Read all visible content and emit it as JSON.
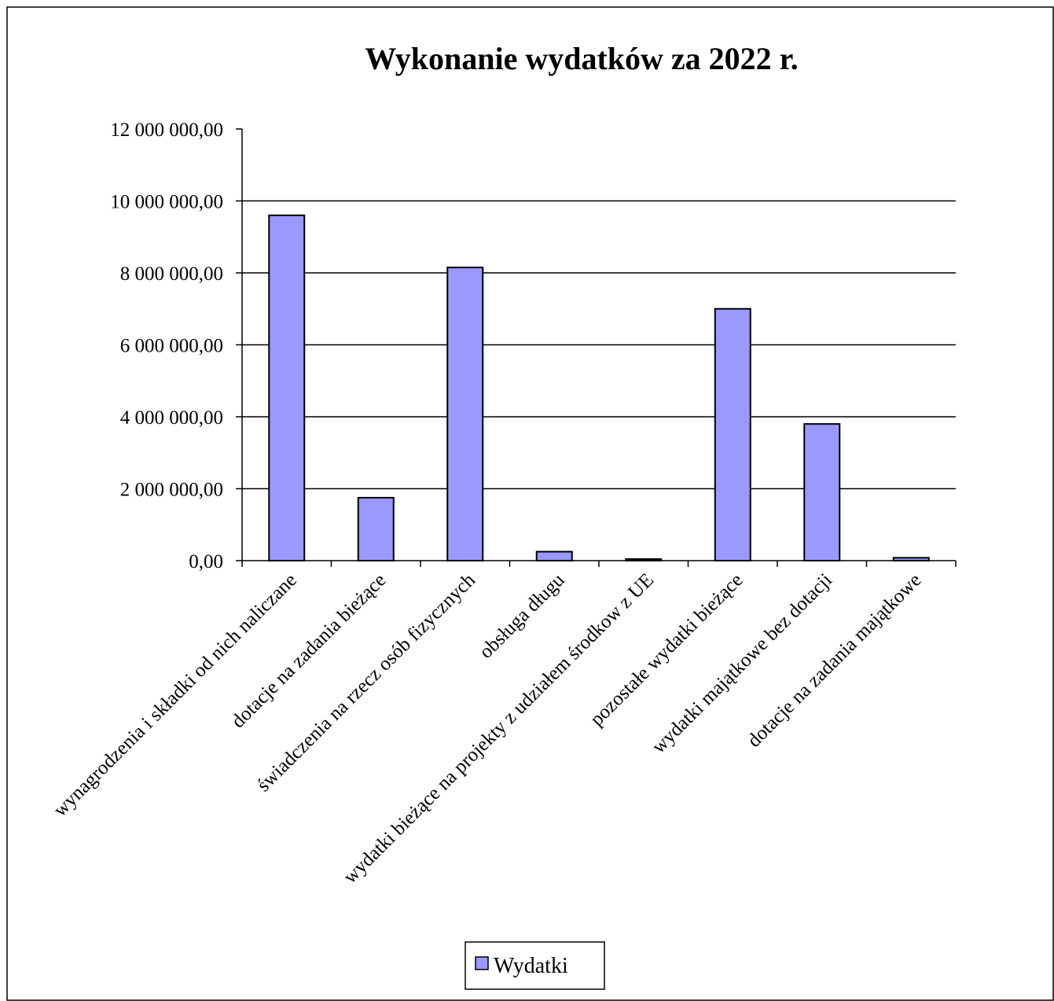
{
  "chart_data": {
    "type": "bar",
    "title": "Wykonanie wydatków za 2022 r.",
    "xlabel": "",
    "ylabel": "",
    "ylim": [
      0,
      12000000
    ],
    "y_ticks": [
      0,
      2000000,
      4000000,
      6000000,
      8000000,
      10000000,
      12000000
    ],
    "y_tick_labels": [
      "0,00",
      "2 000 000,00",
      "4 000 000,00",
      "6 000 000,00",
      "8 000 000,00",
      "10 000 000,00",
      "12 000 000,00"
    ],
    "grid": true,
    "legend_position": "bottom",
    "categories": [
      "wynagrodzenia i składki od nich naliczane",
      "dotacje na zadania bieżące",
      "świadczenia na rzecz osób fizycznych",
      "obsługa długu",
      "wydatki bieżące na projekty z udziałem środkow z UE",
      "pozostałe wydatki bieżące",
      "wydatki majątkowe bez dotacji",
      "dotacje na zadania majątkowe"
    ],
    "series": [
      {
        "name": "Wydatki",
        "color": "#9999ff",
        "values": [
          9600000,
          1750000,
          8150000,
          250000,
          40000,
          7000000,
          3800000,
          80000
        ]
      }
    ]
  }
}
